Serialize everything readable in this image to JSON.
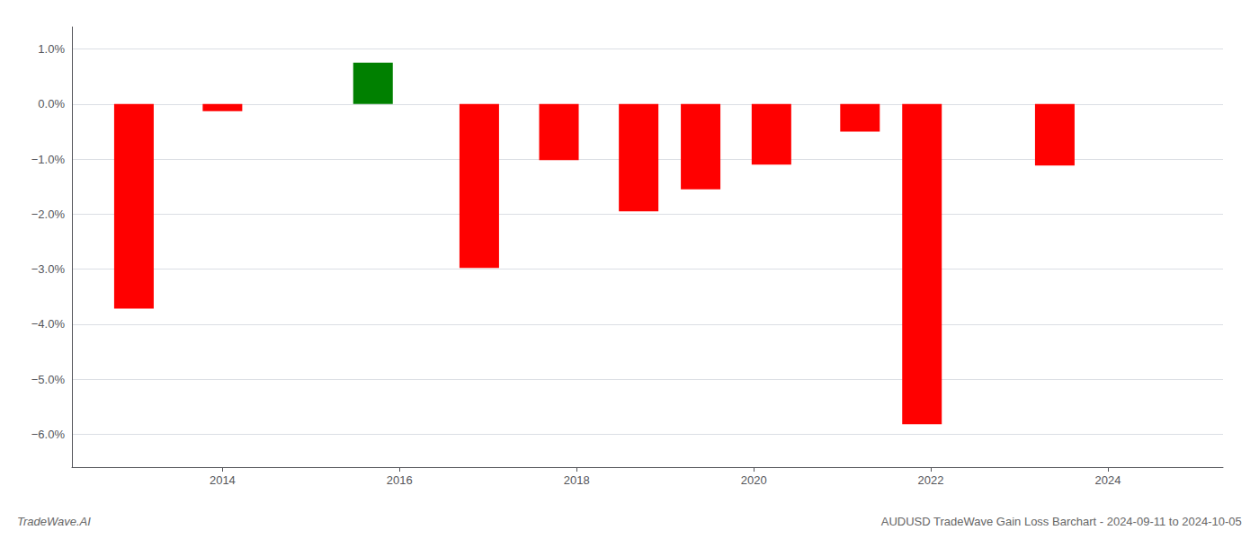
{
  "chart_data": {
    "type": "bar",
    "title": "AUDUSD TradeWave Gain Loss Barchart - 2024-09-11 to 2024-10-05",
    "annotations": [
      "TradeWave.AI"
    ],
    "x": [
      2013.0,
      2014.0,
      2015.7,
      2016.9,
      2017.8,
      2018.7,
      2019.4,
      2020.2,
      2021.2,
      2021.9,
      2023.4
    ],
    "values": [
      -3.72,
      -0.13,
      0.75,
      -2.98,
      -1.02,
      -1.95,
      -1.55,
      -1.1,
      -0.5,
      -5.82,
      -1.12
    ],
    "colors": [
      "#ff0000",
      "#ff0000",
      "#008000",
      "#ff0000",
      "#ff0000",
      "#ff0000",
      "#ff0000",
      "#ff0000",
      "#ff0000",
      "#ff0000",
      "#ff0000"
    ],
    "xlim": [
      2012.3,
      2025.3
    ],
    "xticks": [
      2014,
      2016,
      2018,
      2020,
      2022,
      2024
    ],
    "ylim": [
      -6.6,
      1.4
    ],
    "yticks": [
      {
        "value": 1.0,
        "label": "1.0%"
      },
      {
        "value": 0.0,
        "label": "0.0%"
      },
      {
        "value": -1.0,
        "label": "−1.0%"
      },
      {
        "value": -2.0,
        "label": "−2.0%"
      },
      {
        "value": -3.0,
        "label": "−3.0%"
      },
      {
        "value": -4.0,
        "label": "−4.0%"
      },
      {
        "value": -5.0,
        "label": "−5.0%"
      },
      {
        "value": -6.0,
        "label": "−6.0%"
      }
    ],
    "grid": true
  }
}
